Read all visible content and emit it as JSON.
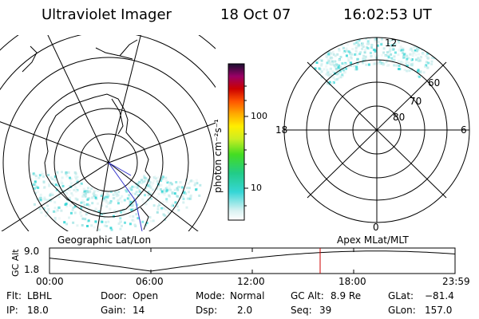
{
  "header": {
    "instrument": "Ultraviolet Imager",
    "date": "18 Oct 07",
    "time": "16:02:53 UT"
  },
  "colorbar": {
    "unit_label": "photon cm⁻²s⁻¹",
    "ticks": [
      "100",
      "10"
    ]
  },
  "left_panel": {
    "caption": "Geographic Lat/Lon"
  },
  "right_panel": {
    "caption": "Apex MLat/MLT",
    "lat_labels": [
      "60",
      "70",
      "80"
    ],
    "mlt_labels": {
      "top": "12",
      "bottom": "0",
      "left": "18",
      "right": "6"
    }
  },
  "altitude_plot": {
    "ylabel": "GC Alt",
    "yticks": [
      "9.0",
      "1.8"
    ],
    "xticks": [
      "00:00",
      "06:00",
      "12:00",
      "18:00",
      "23:59"
    ]
  },
  "status": {
    "filter_label": "Flt:",
    "filter_value": "LBHL",
    "door_label": "Door:",
    "door_value": "Open",
    "mode_label": "Mode:",
    "mode_value": "Normal",
    "gcalt_label": "GC Alt:",
    "gcalt_value": "8.9 Re",
    "glat_label": "GLat:",
    "glat_value": "−81.4",
    "ip_label": "IP:",
    "ip_value": "18.0",
    "gain_label": "Gain:",
    "gain_value": "14",
    "dsp_label": "Dsp:",
    "dsp_value": "2.0",
    "seq_label": "Seq:",
    "seq_value": "39",
    "glon_label": "GLon:",
    "glon_value": "157.0"
  },
  "colors": {
    "aurora": "#36d6d6",
    "marker": "#cc0000"
  }
}
